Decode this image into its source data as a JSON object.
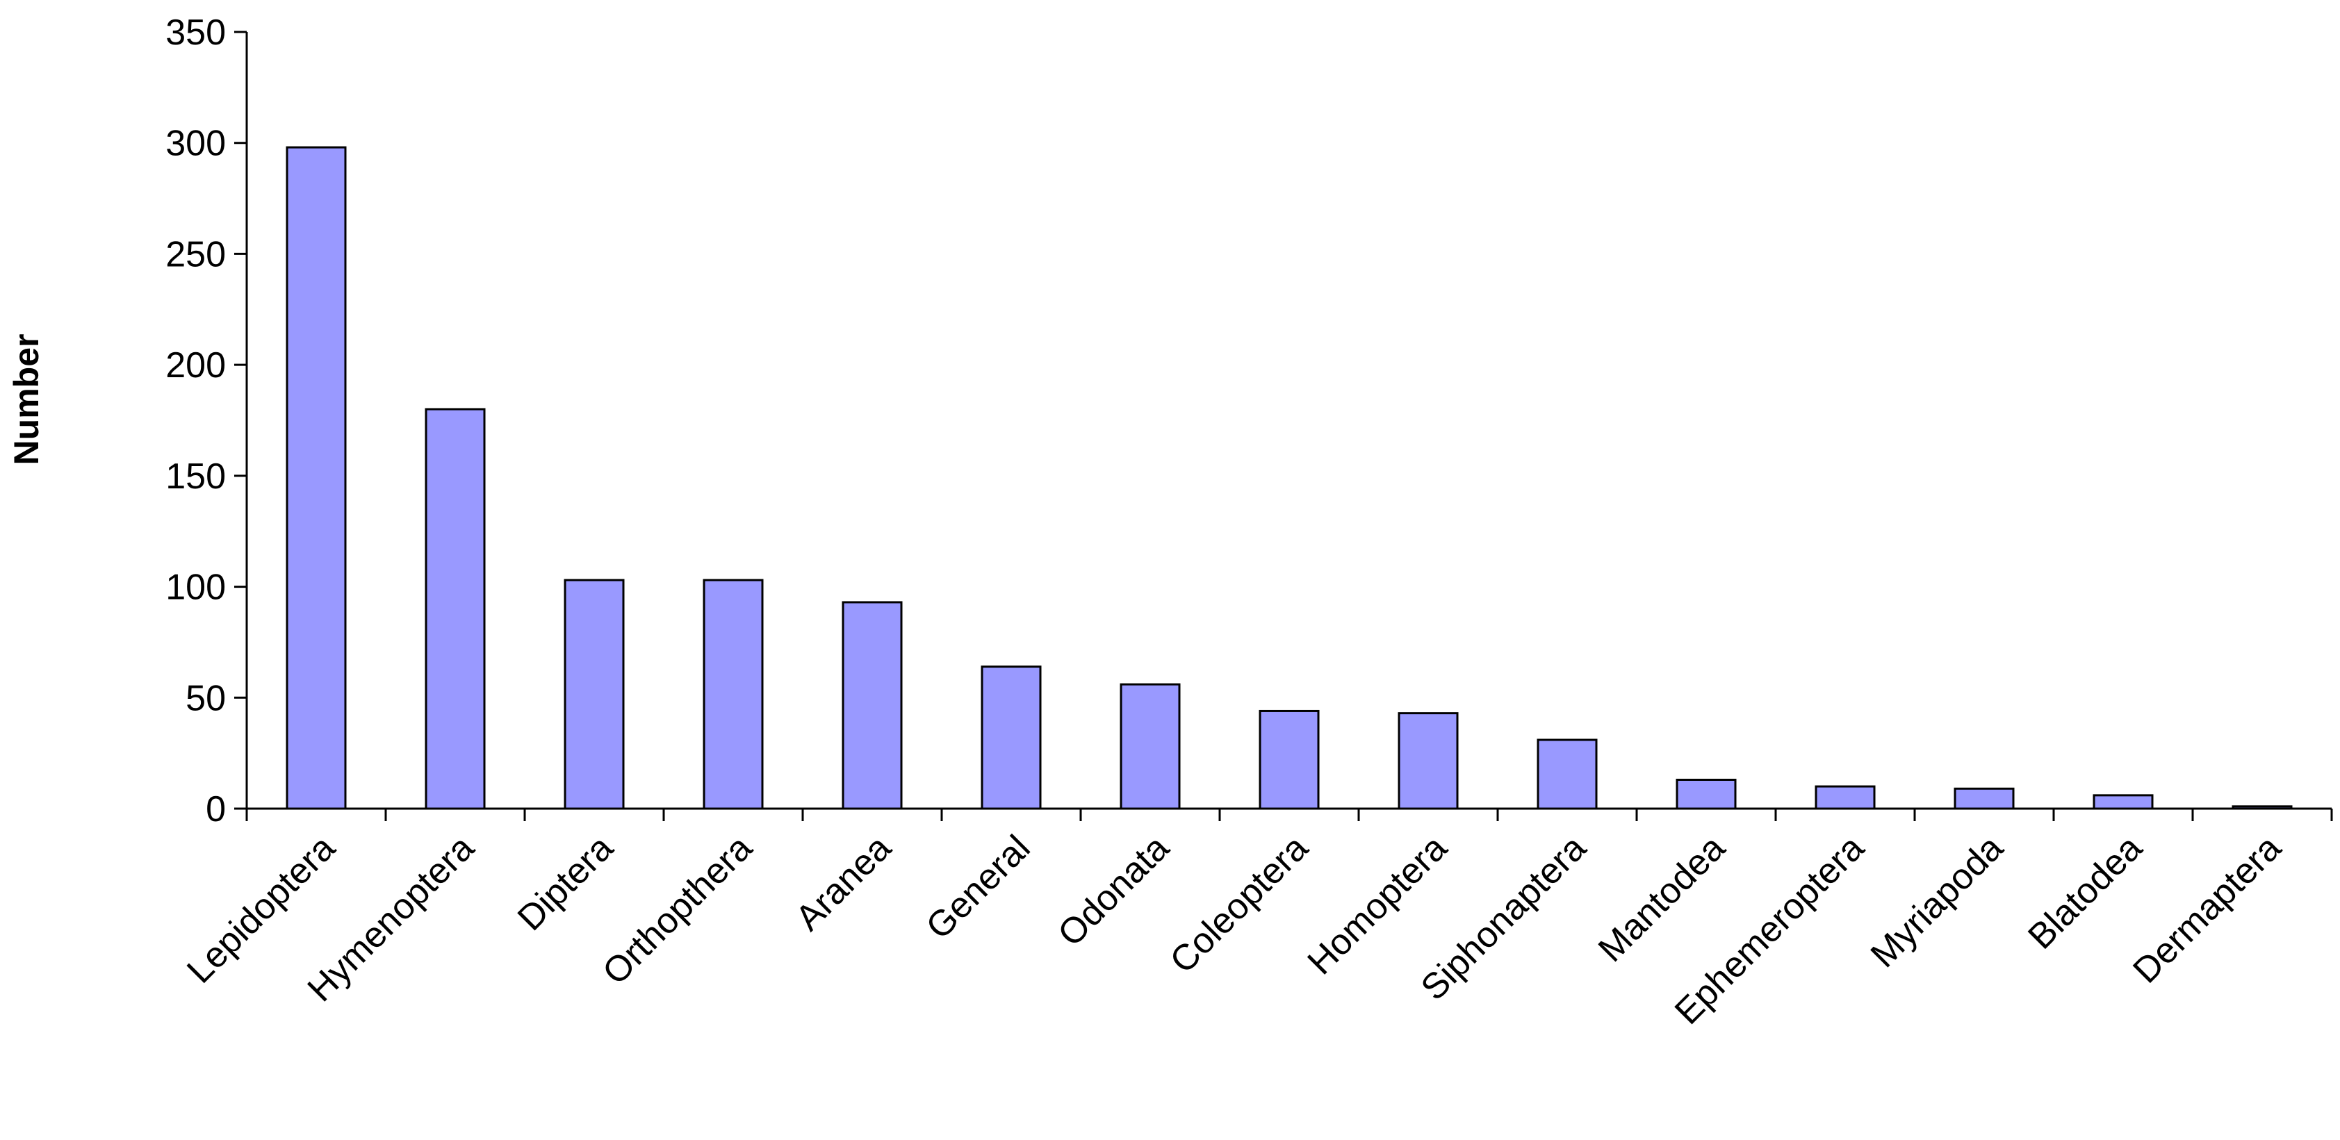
{
  "chart_data": {
    "type": "bar",
    "title": "",
    "xlabel": "",
    "ylabel": "Number",
    "ylim": [
      0,
      350
    ],
    "yticks": [
      0,
      50,
      100,
      150,
      200,
      250,
      300,
      350
    ],
    "grid": false,
    "legend": "none",
    "bar_color": "#9999ff",
    "categories": [
      "Lepidoptera",
      "Hymenoptera",
      "Diptera",
      "Orthopthera",
      "Aranea",
      "General",
      "Odonata",
      "Coleoptera",
      "Homoptera",
      "Siphonaptera",
      "Mantodea",
      "Ephemeroptera",
      "Myriapoda",
      "Blatodea",
      "Dermaptera"
    ],
    "values": [
      298,
      180,
      103,
      103,
      93,
      64,
      56,
      44,
      43,
      31,
      13,
      10,
      9,
      6,
      1
    ]
  }
}
